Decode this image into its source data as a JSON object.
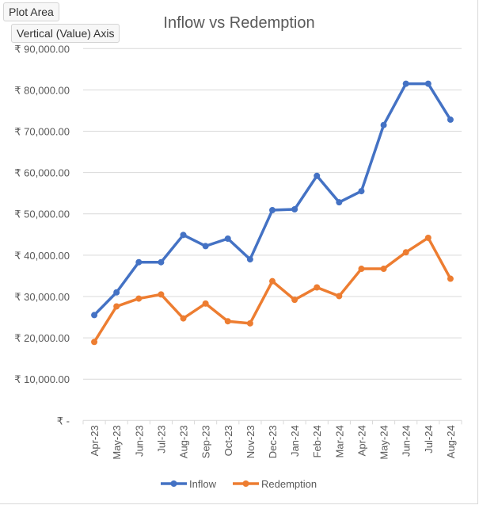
{
  "tooltips": {
    "plot_area": "Plot Area",
    "axis": "Vertical (Value) Axis"
  },
  "chart_data": {
    "type": "line",
    "title": "Inflow vs Redemption",
    "xlabel": "",
    "ylabel": "",
    "ylim": [
      0,
      90000
    ],
    "y_ticks": [
      0,
      10000,
      20000,
      30000,
      40000,
      50000,
      60000,
      70000,
      80000,
      90000
    ],
    "y_tick_labels": [
      "₹ -",
      "₹ 10,000.00",
      "₹ 20,000.00",
      "₹ 30,000.00",
      "₹ 40,000.00",
      "₹ 50,000.00",
      "₹ 60,000.00",
      "₹ 70,000.00",
      "₹ 80,000.00",
      "₹ 90,000.00"
    ],
    "grid": true,
    "legend": "bottom",
    "categories": [
      "Apr-23",
      "May-23",
      "Jun-23",
      "Jul-23",
      "Aug-23",
      "Sep-23",
      "Oct-23",
      "Nov-23",
      "Dec-23",
      "Jan-24",
      "Feb-24",
      "Mar-24",
      "Apr-24",
      "May-24",
      "Jun-24",
      "Jul-24",
      "Aug-24"
    ],
    "series": [
      {
        "name": "Inflow",
        "color": "#4472C4",
        "values": [
          25500,
          31000,
          38300,
          38300,
          44900,
          42200,
          44000,
          39000,
          50900,
          51100,
          59200,
          52800,
          55500,
          71500,
          81500,
          81500,
          72800
        ]
      },
      {
        "name": "Redemption",
        "color": "#ED7D31",
        "values": [
          19000,
          27600,
          29500,
          30500,
          24700,
          28300,
          24000,
          23500,
          33700,
          29200,
          32200,
          30100,
          36700,
          36700,
          40700,
          44200,
          34300
        ]
      }
    ]
  }
}
